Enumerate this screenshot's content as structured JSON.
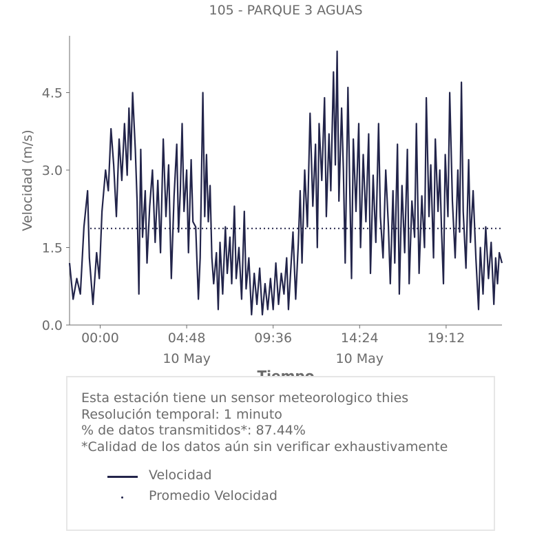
{
  "chart_data": {
    "type": "line",
    "title": "105 - PARQUE 3 AGUAS",
    "xlabel": "Tiempo",
    "ylabel": "Velocidad (m/s)",
    "ylim": [
      0,
      5.6
    ],
    "y_ticks": [
      0.0,
      1.5,
      3.0,
      4.5
    ],
    "y_tick_labels": [
      "0.0",
      "1.5",
      "3.0",
      "4.5"
    ],
    "x_ticks": [
      {
        "time": "00:00",
        "date": ""
      },
      {
        "time": "04:48",
        "date": "10 May"
      },
      {
        "time": "09:36",
        "date": ""
      },
      {
        "time": "14:24",
        "date": "10 May"
      },
      {
        "time": "19:12",
        "date": ""
      }
    ],
    "x_range_hours": [
      -1.7,
      22.3
    ],
    "grid": false,
    "legend_placement": "below chart in info box",
    "series": [
      {
        "name": "Velocidad",
        "style": "solid",
        "color": "#22244a",
        "points": [
          [
            -1.7,
            1.2
          ],
          [
            -1.5,
            0.5
          ],
          [
            -1.3,
            0.9
          ],
          [
            -1.1,
            0.6
          ],
          [
            -0.9,
            1.9
          ],
          [
            -0.7,
            2.6
          ],
          [
            -0.6,
            1.3
          ],
          [
            -0.4,
            0.4
          ],
          [
            -0.2,
            1.4
          ],
          [
            -0.05,
            0.9
          ],
          [
            0.1,
            2.2
          ],
          [
            0.3,
            3.0
          ],
          [
            0.45,
            2.6
          ],
          [
            0.6,
            3.8
          ],
          [
            0.75,
            3.1
          ],
          [
            0.9,
            2.1
          ],
          [
            1.05,
            3.6
          ],
          [
            1.2,
            2.8
          ],
          [
            1.35,
            3.9
          ],
          [
            1.5,
            2.9
          ],
          [
            1.6,
            4.2
          ],
          [
            1.7,
            3.2
          ],
          [
            1.8,
            4.5
          ],
          [
            1.95,
            3.4
          ],
          [
            2.05,
            2.4
          ],
          [
            2.15,
            0.6
          ],
          [
            2.25,
            3.4
          ],
          [
            2.35,
            1.7
          ],
          [
            2.5,
            2.6
          ],
          [
            2.6,
            1.2
          ],
          [
            2.75,
            2.3
          ],
          [
            2.9,
            3.0
          ],
          [
            3.05,
            1.6
          ],
          [
            3.2,
            2.8
          ],
          [
            3.35,
            1.4
          ],
          [
            3.5,
            3.6
          ],
          [
            3.65,
            2.1
          ],
          [
            3.8,
            3.1
          ],
          [
            3.95,
            0.9
          ],
          [
            4.1,
            2.5
          ],
          [
            4.25,
            3.5
          ],
          [
            4.35,
            1.8
          ],
          [
            4.45,
            2.6
          ],
          [
            4.55,
            3.9
          ],
          [
            4.65,
            2.2
          ],
          [
            4.8,
            3.0
          ],
          [
            4.9,
            1.4
          ],
          [
            5.05,
            3.2
          ],
          [
            5.15,
            2.0
          ],
          [
            5.3,
            1.9
          ],
          [
            5.45,
            0.5
          ],
          [
            5.55,
            1.3
          ],
          [
            5.7,
            4.5
          ],
          [
            5.8,
            2.1
          ],
          [
            5.9,
            3.3
          ],
          [
            6.0,
            2.0
          ],
          [
            6.1,
            2.7
          ],
          [
            6.2,
            1.3
          ],
          [
            6.3,
            0.8
          ],
          [
            6.45,
            1.4
          ],
          [
            6.55,
            0.3
          ],
          [
            6.65,
            1.6
          ],
          [
            6.8,
            0.6
          ],
          [
            6.95,
            1.9
          ],
          [
            7.05,
            1.0
          ],
          [
            7.2,
            1.7
          ],
          [
            7.3,
            0.8
          ],
          [
            7.45,
            2.3
          ],
          [
            7.55,
            0.9
          ],
          [
            7.7,
            1.5
          ],
          [
            7.85,
            0.5
          ],
          [
            8.0,
            2.2
          ],
          [
            8.1,
            0.7
          ],
          [
            8.25,
            1.3
          ],
          [
            8.4,
            0.2
          ],
          [
            8.55,
            1.0
          ],
          [
            8.7,
            0.4
          ],
          [
            8.85,
            1.1
          ],
          [
            9.0,
            0.2
          ],
          [
            9.15,
            0.8
          ],
          [
            9.3,
            0.3
          ],
          [
            9.45,
            0.9
          ],
          [
            9.6,
            0.3
          ],
          [
            9.75,
            1.2
          ],
          [
            9.9,
            0.4
          ],
          [
            10.05,
            1.0
          ],
          [
            10.2,
            0.6
          ],
          [
            10.35,
            1.3
          ],
          [
            10.45,
            0.3
          ],
          [
            10.55,
            0.9
          ],
          [
            10.7,
            1.8
          ],
          [
            10.85,
            0.5
          ],
          [
            11.0,
            1.6
          ],
          [
            11.1,
            2.6
          ],
          [
            11.2,
            1.2
          ],
          [
            11.35,
            3.0
          ],
          [
            11.5,
            1.9
          ],
          [
            11.65,
            4.1
          ],
          [
            11.8,
            2.3
          ],
          [
            11.95,
            3.5
          ],
          [
            12.05,
            1.5
          ],
          [
            12.15,
            3.9
          ],
          [
            12.3,
            2.8
          ],
          [
            12.45,
            4.4
          ],
          [
            12.55,
            2.1
          ],
          [
            12.7,
            3.7
          ],
          [
            12.8,
            2.6
          ],
          [
            12.95,
            4.9
          ],
          [
            13.05,
            3.1
          ],
          [
            13.15,
            5.3
          ],
          [
            13.25,
            2.4
          ],
          [
            13.4,
            4.2
          ],
          [
            13.5,
            3.0
          ],
          [
            13.6,
            1.2
          ],
          [
            13.75,
            4.6
          ],
          [
            13.85,
            2.7
          ],
          [
            13.95,
            0.9
          ],
          [
            14.05,
            3.6
          ],
          [
            14.2,
            2.2
          ],
          [
            14.35,
            3.9
          ],
          [
            14.45,
            1.5
          ],
          [
            14.6,
            3.3
          ],
          [
            14.75,
            2.0
          ],
          [
            14.9,
            3.7
          ],
          [
            15.0,
            1.0
          ],
          [
            15.15,
            2.9
          ],
          [
            15.3,
            1.6
          ],
          [
            15.45,
            3.9
          ],
          [
            15.55,
            2.1
          ],
          [
            15.7,
            1.3
          ],
          [
            15.85,
            3.0
          ],
          [
            16.0,
            1.9
          ],
          [
            16.1,
            0.8
          ],
          [
            16.25,
            2.6
          ],
          [
            16.35,
            1.2
          ],
          [
            16.5,
            3.5
          ],
          [
            16.6,
            0.6
          ],
          [
            16.75,
            2.7
          ],
          [
            16.9,
            1.4
          ],
          [
            17.05,
            3.4
          ],
          [
            17.15,
            0.8
          ],
          [
            17.3,
            2.4
          ],
          [
            17.45,
            1.7
          ],
          [
            17.55,
            3.9
          ],
          [
            17.7,
            1.0
          ],
          [
            17.85,
            2.5
          ],
          [
            18.0,
            1.5
          ],
          [
            18.1,
            4.4
          ],
          [
            18.25,
            2.1
          ],
          [
            18.35,
            3.1
          ],
          [
            18.5,
            1.3
          ],
          [
            18.6,
            3.6
          ],
          [
            18.75,
            2.2
          ],
          [
            18.85,
            3.0
          ],
          [
            18.95,
            1.8
          ],
          [
            19.05,
            0.8
          ],
          [
            19.15,
            3.3
          ],
          [
            19.3,
            2.1
          ],
          [
            19.4,
            4.5
          ],
          [
            19.55,
            2.4
          ],
          [
            19.7,
            1.3
          ],
          [
            19.85,
            3.0
          ],
          [
            19.95,
            1.8
          ],
          [
            20.05,
            4.7
          ],
          [
            20.15,
            2.2
          ],
          [
            20.3,
            1.1
          ],
          [
            20.45,
            3.2
          ],
          [
            20.55,
            1.6
          ],
          [
            20.7,
            2.6
          ],
          [
            20.85,
            1.3
          ],
          [
            21.0,
            0.3
          ],
          [
            21.1,
            1.5
          ],
          [
            21.25,
            0.6
          ],
          [
            21.4,
            1.9
          ],
          [
            21.55,
            0.9
          ],
          [
            21.7,
            1.6
          ],
          [
            21.85,
            0.4
          ],
          [
            21.95,
            1.3
          ],
          [
            22.05,
            0.8
          ],
          [
            22.15,
            1.4
          ],
          [
            22.3,
            1.2
          ]
        ]
      },
      {
        "name": "Promedio Velocidad",
        "style": "dotted",
        "color": "#22244a",
        "value": 1.87
      }
    ]
  },
  "info_box": {
    "lines": [
      "Esta estación tiene un sensor meteorologico thies",
      "Resolución temporal: 1 minuto",
      "% de datos transmitidos*: 87.44%",
      "*Calidad de los datos aún sin verificar exhaustivamente"
    ],
    "legend": {
      "line_label": "Velocidad",
      "avg_label": "Promedio Velocidad"
    }
  }
}
